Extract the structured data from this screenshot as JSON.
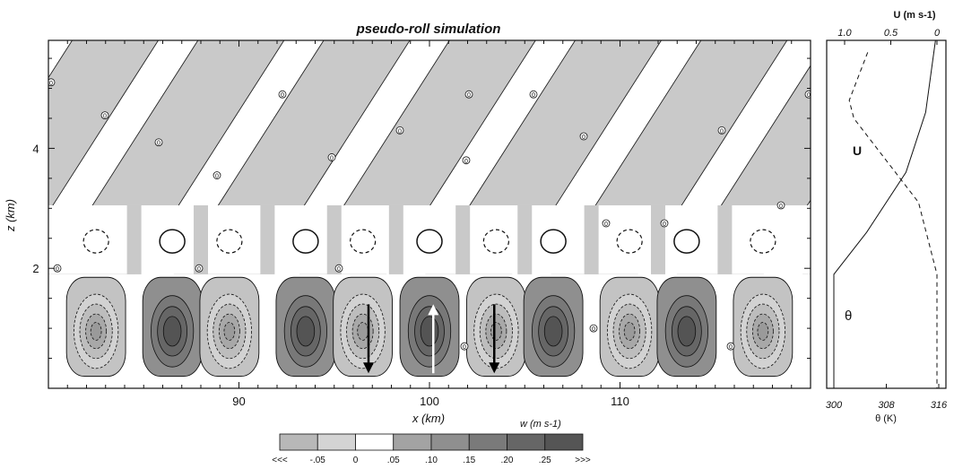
{
  "chart_data": [
    {
      "type": "heatmap",
      "title": "pseudo-roll simulation",
      "xlabel": "x (km)",
      "ylabel": "z (km)",
      "xlim": [
        80,
        120
      ],
      "ylim": [
        0,
        5.8
      ],
      "x_ticks": [
        90,
        100,
        110
      ],
      "y_ticks": [
        2,
        4
      ],
      "contour_labels": [
        "0",
        "0",
        "0",
        "0",
        "0",
        "0",
        "0",
        "0",
        "0",
        "0",
        "0",
        "0",
        "0",
        "0",
        "0",
        "0",
        "0",
        "0",
        "0",
        "0",
        "0",
        "0"
      ],
      "cell_centers_x": [
        82.5,
        86.5,
        89.5,
        93.5,
        96.5,
        100,
        103.5,
        106.5,
        110.5,
        113.5,
        117.5
      ],
      "cell_w_sign": [
        "neg",
        "pos",
        "neg",
        "pos",
        "neg",
        "pos",
        "neg",
        "pos",
        "neg",
        "pos",
        "neg"
      ],
      "arrows": [
        {
          "x": 96.8,
          "direction": "down",
          "color": "black"
        },
        {
          "x": 100.2,
          "direction": "up",
          "color": "white"
        },
        {
          "x": 103.4,
          "direction": "down",
          "color": "black"
        }
      ],
      "colorbar": {
        "label": "w (m s-1)",
        "tick_labels": [
          "<<<",
          "-.05",
          "0",
          ".05",
          ".10",
          ".15",
          ".20",
          ".25",
          ">>>"
        ],
        "colors": [
          "#b8b8b8",
          "#d4d4d4",
          "#ffffff",
          "#a3a3a3",
          "#8f8f8f",
          "#7a7a7a",
          "#666666",
          "#555555"
        ]
      }
    },
    {
      "type": "line",
      "title": "",
      "top_axis_label": "U (m s-1)",
      "top_ticks": [
        "1.0",
        "0.5",
        "0"
      ],
      "xlabel": "θ (K)",
      "bottom_ticks": [
        "300",
        "308",
        "316"
      ],
      "series": [
        {
          "name": "U",
          "style": "dashed",
          "u_top_axis": [
            0.75,
            0.95,
            0.9,
            0.55,
            0.2,
            0.0,
            0.0
          ],
          "z": [
            5.6,
            4.8,
            4.5,
            3.8,
            3.1,
            1.9,
            0.0
          ]
        },
        {
          "name": "θ",
          "style": "solid",
          "theta_K": [
            300,
            300,
            305,
            311,
            314,
            315.5
          ],
          "z": [
            0.0,
            1.9,
            2.6,
            3.6,
            4.6,
            5.8
          ]
        }
      ]
    }
  ]
}
